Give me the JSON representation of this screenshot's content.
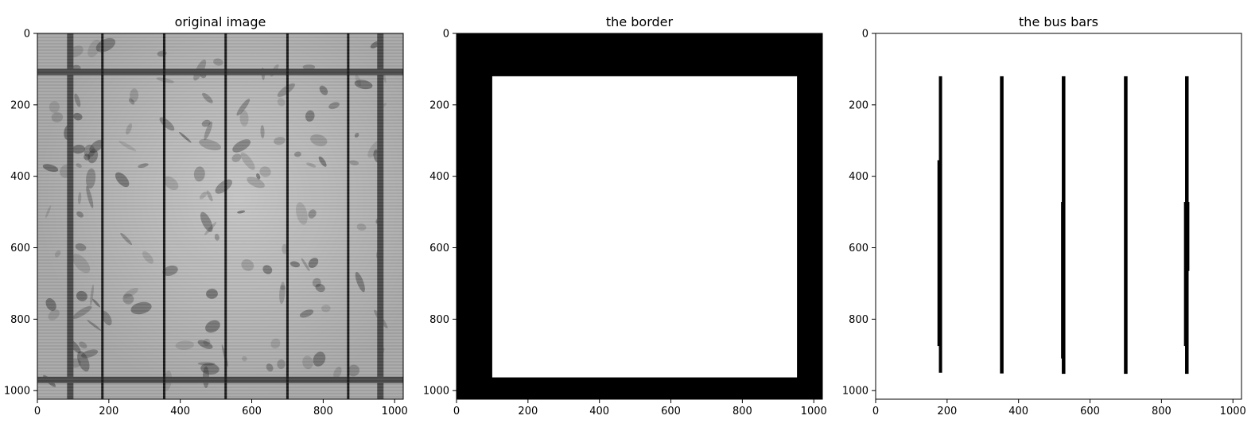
{
  "chart_data": [
    {
      "type": "image",
      "title": "original image",
      "xlim": [
        0,
        1024
      ],
      "ylim": [
        1024,
        0
      ],
      "xticks": [
        0,
        200,
        400,
        600,
        800,
        1000
      ],
      "yticks": [
        0,
        200,
        400,
        600,
        800,
        1000
      ],
      "content": "grayscale electroluminescence image of a solar cell",
      "features": {
        "cell_frame_edges": {
          "x": [
            92,
            960
          ],
          "y": [
            108,
            970
          ]
        },
        "busbars_x": [
          182,
          355,
          527,
          700,
          870
        ],
        "background_gray": "#a8a8a8",
        "frame_gray": "#4a4a4a"
      }
    },
    {
      "type": "image",
      "title": "the border",
      "xlim": [
        0,
        1024
      ],
      "ylim": [
        1024,
        0
      ],
      "xticks": [
        0,
        200,
        400,
        600,
        800,
        1000
      ],
      "yticks": [
        0,
        200,
        400,
        600,
        800,
        1000
      ],
      "content": "binary mask",
      "background_color": "#000000",
      "white_region": {
        "x": [
          100,
          953
        ],
        "y": [
          120,
          963
        ]
      }
    },
    {
      "type": "image",
      "title": "the bus bars",
      "xlim": [
        0,
        1024
      ],
      "ylim": [
        1024,
        0
      ],
      "xticks": [
        0,
        200,
        400,
        600,
        800,
        1000
      ],
      "yticks": [
        0,
        200,
        400,
        600,
        800,
        1000
      ],
      "content": "binary mask",
      "background_color": "#ffffff",
      "bars": [
        {
          "x": [
            177,
            186
          ],
          "y": [
            120,
            950
          ]
        },
        {
          "x": [
            348,
            358
          ],
          "y": [
            120,
            952
          ]
        },
        {
          "x": [
            521,
            531
          ],
          "y": [
            120,
            953
          ]
        },
        {
          "x": [
            695,
            705
          ],
          "y": [
            120,
            953
          ]
        },
        {
          "x": [
            866,
            876
          ],
          "y": [
            120,
            953
          ]
        }
      ],
      "bar_extensions": [
        {
          "x": [
            173,
            178
          ],
          "y": [
            355,
            875
          ]
        },
        {
          "x": [
            519,
            523
          ],
          "y": [
            472,
            910
          ]
        },
        {
          "x": [
            863,
            868
          ],
          "y": [
            472,
            875
          ]
        },
        {
          "x": [
            874,
            878
          ],
          "y": [
            472,
            665
          ]
        }
      ]
    }
  ]
}
